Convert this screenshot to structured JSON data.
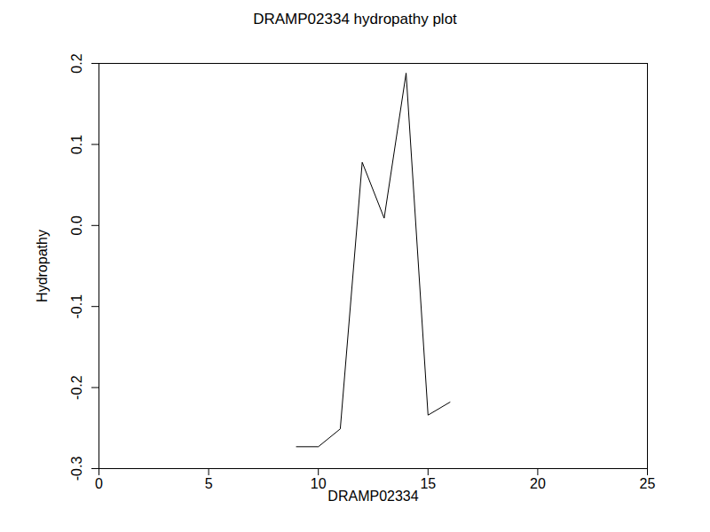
{
  "chart_data": {
    "type": "line",
    "title": "DRAMP02334 hydropathy plot",
    "x_label": "DRAMP02334",
    "y_label": "Hydropathy",
    "x": [
      9,
      10,
      11,
      12,
      13,
      14,
      15,
      16
    ],
    "values": [
      -0.273,
      -0.273,
      -0.251,
      0.078,
      0.009,
      0.188,
      -0.234,
      -0.218
    ],
    "color": "#000000",
    "xlim": [
      0,
      25
    ],
    "xticks": [
      0,
      5,
      10,
      15,
      20,
      25
    ],
    "ylim": [
      -0.3,
      0.2
    ],
    "yticks": [
      -0.3,
      -0.2,
      -0.1,
      {
        "value": 0,
        "label": "0.0"
      },
      0.1,
      0.2
    ],
    "grid": false
  }
}
